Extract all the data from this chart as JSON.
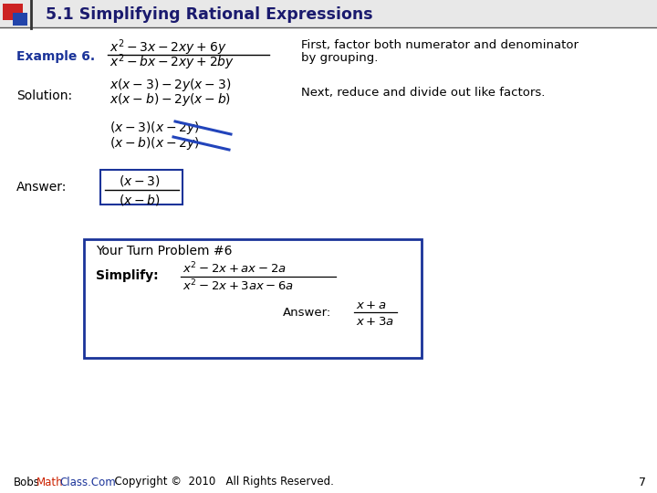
{
  "title": "5.1 Simplifying Rational Expressions",
  "bg_color": "#ffffff",
  "title_color": "#1a1a6e",
  "title_fontsize": 12.5,
  "accent_red": "#cc2222",
  "accent_blue": "#1a3399",
  "box_color": "#1a3399",
  "page_number": "7",
  "example_label": "Example 6.",
  "solution_label": "Solution:",
  "answer_label": "Answer:",
  "first_note_1": "First, factor both numerator and denominator",
  "first_note_2": "by grouping.",
  "next_note": "Next, reduce and divide out like factors.",
  "your_turn_title": "Your Turn Problem #6",
  "simplify_label": "Simplify:",
  "answer_label2": "Answer:"
}
